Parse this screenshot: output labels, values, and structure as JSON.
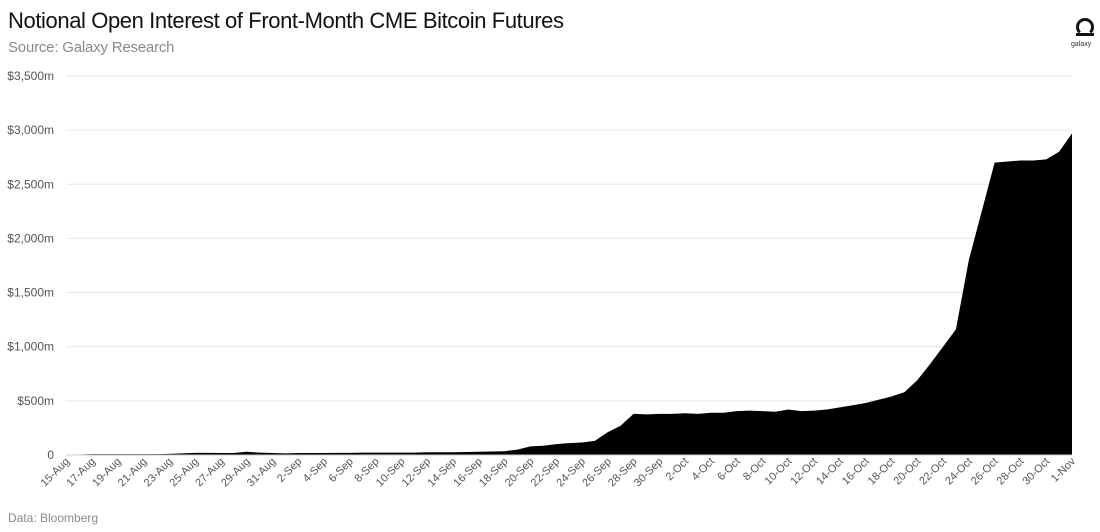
{
  "header": {
    "title": "Notional Open Interest of Front-Month CME Bitcoin Futures",
    "subtitle": "Source: Galaxy Research"
  },
  "logo": {
    "text": "galaxy",
    "icon": "galaxy-logo-icon"
  },
  "footer": {
    "note": "Data: Bloomberg"
  },
  "colors": {
    "area": "#000000",
    "grid": "#e6e6e6",
    "text": "#555555"
  },
  "chart_data": {
    "type": "area",
    "title": "Notional Open Interest of Front-Month CME Bitcoin Futures",
    "xlabel": "",
    "ylabel": "",
    "ylim": [
      0,
      3500
    ],
    "yticks": [
      0,
      500,
      1000,
      1500,
      2000,
      2500,
      3000,
      3500
    ],
    "ytick_labels": [
      "0",
      "$500m",
      "$1,000m",
      "$1,500m",
      "$2,000m",
      "$2,500m",
      "$3,000m",
      "$3,500m"
    ],
    "grid": true,
    "legend": "none",
    "x_tick_labels": [
      "15-Aug",
      "17-Aug",
      "19-Aug",
      "21-Aug",
      "23-Aug",
      "25-Aug",
      "27-Aug",
      "29-Aug",
      "31-Aug",
      "2-Sep",
      "4-Sep",
      "6-Sep",
      "8-Sep",
      "10-Sep",
      "12-Sep",
      "14-Sep",
      "16-Sep",
      "18-Sep",
      "20-Sep",
      "22-Sep",
      "24-Sep",
      "26-Sep",
      "28-Sep",
      "30-Sep",
      "2-Oct",
      "4-Oct",
      "6-Oct",
      "8-Oct",
      "10-Oct",
      "12-Oct",
      "14-Oct",
      "16-Oct",
      "18-Oct",
      "20-Oct",
      "22-Oct",
      "24-Oct",
      "26-Oct",
      "28-Oct",
      "30-Oct",
      "1-Nov"
    ],
    "x": [
      "15-Aug",
      "16-Aug",
      "17-Aug",
      "18-Aug",
      "19-Aug",
      "20-Aug",
      "21-Aug",
      "22-Aug",
      "23-Aug",
      "24-Aug",
      "25-Aug",
      "26-Aug",
      "27-Aug",
      "28-Aug",
      "29-Aug",
      "30-Aug",
      "31-Aug",
      "1-Sep",
      "2-Sep",
      "3-Sep",
      "4-Sep",
      "5-Sep",
      "6-Sep",
      "7-Sep",
      "8-Sep",
      "9-Sep",
      "10-Sep",
      "11-Sep",
      "12-Sep",
      "13-Sep",
      "14-Sep",
      "15-Sep",
      "16-Sep",
      "17-Sep",
      "18-Sep",
      "19-Sep",
      "20-Sep",
      "21-Sep",
      "22-Sep",
      "23-Sep",
      "24-Sep",
      "25-Sep",
      "26-Sep",
      "27-Sep",
      "28-Sep",
      "29-Sep",
      "30-Sep",
      "1-Oct",
      "2-Oct",
      "3-Oct",
      "4-Oct",
      "5-Oct",
      "6-Oct",
      "7-Oct",
      "8-Oct",
      "9-Oct",
      "10-Oct",
      "11-Oct",
      "12-Oct",
      "13-Oct",
      "14-Oct",
      "15-Oct",
      "16-Oct",
      "17-Oct",
      "18-Oct",
      "19-Oct",
      "20-Oct",
      "21-Oct",
      "22-Oct",
      "23-Oct",
      "24-Oct",
      "25-Oct",
      "26-Oct",
      "27-Oct",
      "28-Oct",
      "29-Oct",
      "30-Oct",
      "31-Oct",
      "1-Nov"
    ],
    "series": [
      {
        "values": [
          0,
          5,
          8,
          8,
          8,
          8,
          8,
          8,
          10,
          15,
          20,
          20,
          18,
          18,
          30,
          22,
          18,
          15,
          18,
          18,
          18,
          20,
          20,
          22,
          22,
          22,
          22,
          22,
          25,
          25,
          25,
          28,
          30,
          32,
          35,
          50,
          80,
          85,
          100,
          110,
          115,
          130,
          210,
          270,
          380,
          375,
          380,
          380,
          385,
          380,
          390,
          390,
          405,
          410,
          405,
          400,
          420,
          405,
          410,
          420,
          440,
          460,
          480,
          510,
          540,
          580,
          690,
          840,
          1000,
          1160,
          1800,
          2250,
          2700,
          2710,
          2720,
          2720,
          2730,
          2800,
          2970
        ]
      }
    ]
  }
}
